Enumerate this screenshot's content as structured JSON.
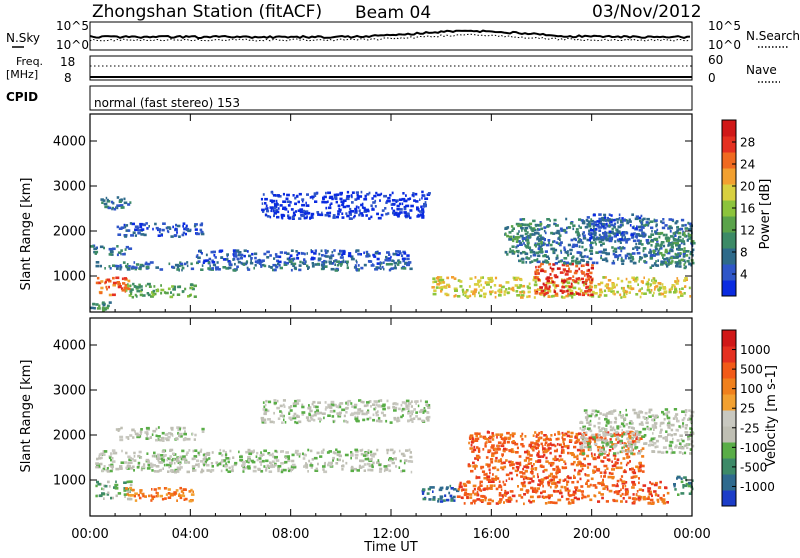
{
  "header": {
    "station": "Zhongshan Station (fitACF)",
    "beam": "Beam 04",
    "date": "03/Nov/2012"
  },
  "status_panel": {
    "nsky_label": "N.Sky",
    "nsearch_label": "N.Search",
    "noise_ticks": [
      "10^5",
      "10^0"
    ],
    "freq_label": "Freq.",
    "freq_unit": "[MHz]",
    "freq_ticks": [
      "18",
      "8"
    ],
    "nave_label": "Nave",
    "nave_ticks": [
      "60",
      "0"
    ],
    "cpid_label": "CPID",
    "cpid_value": "normal (fast stereo) 153"
  },
  "chart_data": [
    {
      "type": "heatmap",
      "title": "",
      "ylabel": "Slant Range [km]",
      "xlabel": "Time UT",
      "xlim": [
        0,
        24
      ],
      "ylim": [
        200,
        4600
      ],
      "x_tick_labels": [
        "00:00",
        "04:00",
        "08:00",
        "12:00",
        "16:00",
        "20:00",
        "00:00"
      ],
      "y_tick_labels": [
        "1000",
        "2000",
        "3000",
        "4000"
      ],
      "colorbar": {
        "label": "Power [dB]",
        "ticks": [
          "28",
          "24",
          "20",
          "16",
          "12",
          "8",
          "4"
        ],
        "colors": [
          "#0a2be0",
          "#2f56c8",
          "#2e6a8a",
          "#3c8a66",
          "#5aa34a",
          "#8cc43c",
          "#d8d040",
          "#f2a030",
          "#f06a20",
          "#e53020",
          "#d01818"
        ]
      },
      "regions": [
        {
          "t0": 0.3,
          "t1": 1.6,
          "r0": 2500,
          "r1": 2800,
          "level": 2
        },
        {
          "t0": 1.0,
          "t1": 4.5,
          "r0": 1900,
          "r1": 2200,
          "level": 1
        },
        {
          "t0": 4.2,
          "t1": 12.8,
          "r0": 1300,
          "r1": 1600,
          "level": 1
        },
        {
          "t0": 0.0,
          "t1": 12.8,
          "r0": 1150,
          "r1": 1350,
          "level": 2
        },
        {
          "t0": 0.0,
          "t1": 1.6,
          "r0": 1500,
          "r1": 1700,
          "level": 2
        },
        {
          "t0": 6.8,
          "t1": 13.5,
          "r0": 2300,
          "r1": 2900,
          "level": 0
        },
        {
          "t0": 0.2,
          "t1": 1.5,
          "r0": 600,
          "r1": 1000,
          "level": 8
        },
        {
          "t0": 1.4,
          "t1": 4.2,
          "r0": 550,
          "r1": 850,
          "level": 4
        },
        {
          "t0": 0.0,
          "t1": 0.8,
          "r0": 250,
          "r1": 450,
          "level": 3
        },
        {
          "t0": 13.6,
          "t1": 23.9,
          "r0": 550,
          "r1": 1000,
          "level": 6
        },
        {
          "t0": 17.7,
          "t1": 20.0,
          "r0": 600,
          "r1": 1300,
          "level": 9
        },
        {
          "t0": 17.0,
          "t1": 24.0,
          "r0": 1300,
          "r1": 2300,
          "level": 2
        },
        {
          "t0": 19.8,
          "t1": 22.0,
          "r0": 1800,
          "r1": 2400,
          "level": 1
        },
        {
          "t0": 22.3,
          "t1": 24.0,
          "r0": 1200,
          "r1": 2000,
          "level": 3
        },
        {
          "t0": 16.5,
          "t1": 18.0,
          "r0": 1500,
          "r1": 2200,
          "level": 3
        }
      ]
    },
    {
      "type": "heatmap",
      "title": "",
      "ylabel": "Slant Range [km]",
      "xlabel": "Time UT",
      "xlim": [
        0,
        24
      ],
      "ylim": [
        200,
        4600
      ],
      "x_tick_labels": [
        "00:00",
        "04:00",
        "08:00",
        "12:00",
        "16:00",
        "20:00",
        "00:00"
      ],
      "y_tick_labels": [
        "1000",
        "2000",
        "3000",
        "4000"
      ],
      "colorbar": {
        "label": "Velocity [m s-1]",
        "ticks": [
          "1000",
          "500",
          "100",
          "25",
          "-25",
          "-100",
          "-500",
          "-1000"
        ],
        "colors": [
          "#1c3dc8",
          "#2f6a8e",
          "#3d8a68",
          "#59ad47",
          "#bfbfb4",
          "#c8c8c0",
          "#f2a030",
          "#f0801c",
          "#f25a18",
          "#e53020",
          "#d01818"
        ]
      },
      "regions": [
        {
          "t0": 0.2,
          "t1": 12.8,
          "r0": 1200,
          "r1": 1700,
          "level": 4
        },
        {
          "t0": 1.0,
          "t1": 4.5,
          "r0": 1900,
          "r1": 2200,
          "level": 4
        },
        {
          "t0": 6.8,
          "t1": 13.5,
          "r0": 2300,
          "r1": 2800,
          "level": 4
        },
        {
          "t0": 0.2,
          "t1": 1.6,
          "r0": 600,
          "r1": 1000,
          "level": 3
        },
        {
          "t0": 1.4,
          "t1": 4.2,
          "r0": 550,
          "r1": 850,
          "level": 7
        },
        {
          "t0": 13.2,
          "t1": 14.6,
          "r0": 550,
          "r1": 900,
          "level": 1
        },
        {
          "t0": 14.6,
          "t1": 23.0,
          "r0": 500,
          "r1": 1000,
          "level": 8
        },
        {
          "t0": 15.0,
          "t1": 22.0,
          "r0": 1000,
          "r1": 2100,
          "level": 8
        },
        {
          "t0": 19.5,
          "t1": 24.0,
          "r0": 1600,
          "r1": 2600,
          "level": 4
        },
        {
          "t0": 23.2,
          "t1": 24.0,
          "r0": 700,
          "r1": 1100,
          "level": 2
        }
      ]
    }
  ]
}
